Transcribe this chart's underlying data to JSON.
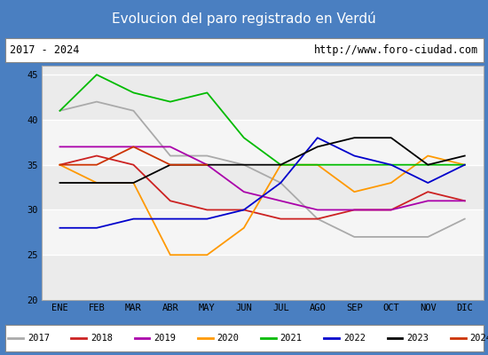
{
  "title": "Evolucion del paro registrado en Verdú",
  "subtitle_left": "2017 - 2024",
  "subtitle_right": "http://www.foro-ciudad.com",
  "title_bg": "#4a7fc1",
  "title_color": "white",
  "plot_bg": "#ebebeb",
  "plot_bg_alt": "#f5f5f5",
  "months": [
    "ENE",
    "FEB",
    "MAR",
    "ABR",
    "MAY",
    "JUN",
    "JUL",
    "AGO",
    "SEP",
    "OCT",
    "NOV",
    "DIC"
  ],
  "ylim": [
    20,
    46
  ],
  "yticks": [
    20,
    25,
    30,
    35,
    40,
    45
  ],
  "series": {
    "2017": {
      "color": "#aaaaaa",
      "data": [
        41,
        42,
        41,
        36,
        36,
        35,
        33,
        29,
        27,
        27,
        27,
        29
      ]
    },
    "2018": {
      "color": "#cc2222",
      "data": [
        35,
        36,
        35,
        31,
        30,
        30,
        29,
        29,
        30,
        30,
        32,
        31
      ]
    },
    "2019": {
      "color": "#aa00aa",
      "data": [
        37,
        37,
        37,
        37,
        35,
        32,
        31,
        30,
        30,
        30,
        31,
        31
      ]
    },
    "2020": {
      "color": "#ff9900",
      "data": [
        35,
        33,
        33,
        25,
        25,
        28,
        35,
        35,
        32,
        33,
        36,
        35
      ]
    },
    "2021": {
      "color": "#00bb00",
      "data": [
        41,
        45,
        43,
        42,
        43,
        38,
        35,
        35,
        35,
        35,
        35,
        35
      ]
    },
    "2022": {
      "color": "#0000cc",
      "data": [
        28,
        28,
        29,
        29,
        29,
        30,
        33,
        38,
        36,
        35,
        33,
        35
      ]
    },
    "2023": {
      "color": "#000000",
      "data": [
        33,
        33,
        33,
        35,
        35,
        35,
        35,
        37,
        38,
        38,
        35,
        36
      ]
    },
    "2024": {
      "color": "#cc3300",
      "data": [
        35,
        35,
        37,
        35,
        35,
        null,
        null,
        null,
        null,
        null,
        null,
        null
      ]
    }
  }
}
